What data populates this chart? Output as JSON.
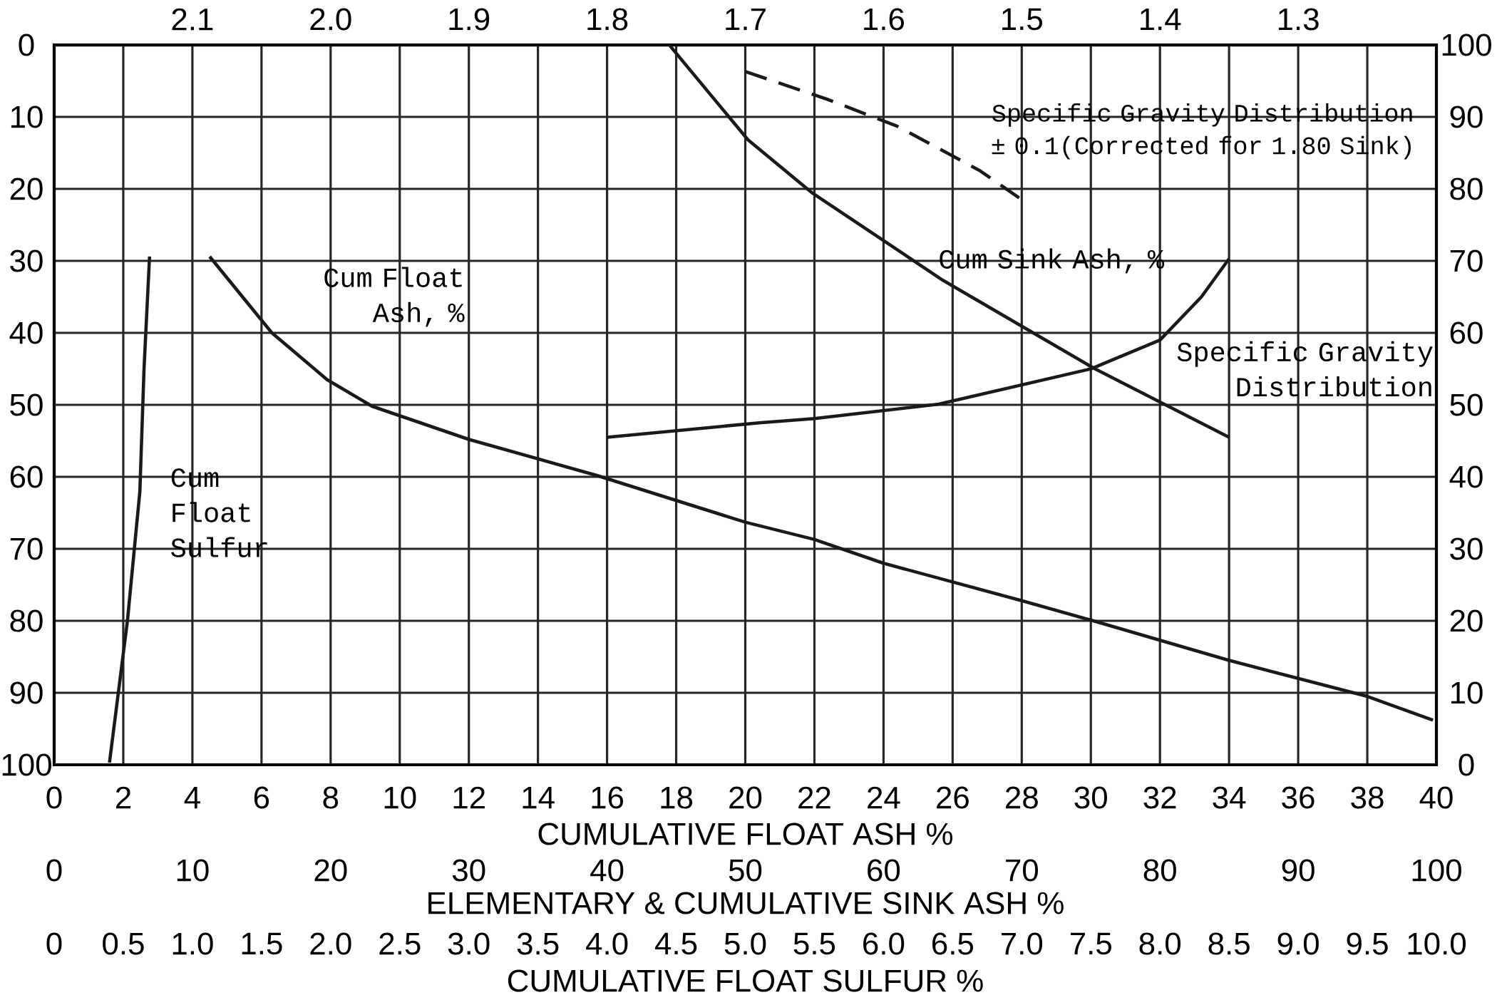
{
  "chart_data": [
    {
      "type": "line",
      "xlabel": "CUMULATIVE FLOAT ASH %",
      "xlim": [
        0,
        40
      ],
      "xticks": [
        0,
        2,
        4,
        6,
        8,
        10,
        12,
        14,
        16,
        18,
        20,
        22,
        24,
        26,
        28,
        30,
        32,
        34,
        36,
        38,
        40
      ],
      "x2lim": [
        2.2,
        1.2
      ],
      "x2ticks": [
        2.1,
        {
          "value": 2.0,
          "label": "2.0"
        },
        1.9,
        1.8,
        1.7,
        1.6,
        1.5,
        1.4,
        1.3
      ],
      "ylim": [
        100,
        0
      ],
      "yticks": [
        0,
        10,
        20,
        30,
        40,
        50,
        60,
        70,
        80,
        90,
        100
      ],
      "y2lim": [
        0,
        100
      ],
      "y2ticks": [
        0,
        10,
        20,
        30,
        40,
        50,
        60,
        70,
        80,
        90,
        100
      ],
      "grid": true,
      "marker": "none",
      "line_style": "solid",
      "series": [
        {
          "name": "Cum Float Ash, %",
          "color": "#1a1a1a",
          "x": [
            4.5,
            6.3,
            7.9,
            9.2,
            12,
            15.7,
            20,
            22,
            24,
            28,
            30,
            34,
            38,
            39.9
          ],
          "values": [
            29.4,
            40,
            46.5,
            50.2,
            54.8,
            59.8,
            66.3,
            68.7,
            72,
            77.2,
            79.9,
            85.5,
            90.5,
            93.8
          ]
        },
        {
          "name": "Specific Gravity Distribution",
          "color": "#1a1a1a",
          "axis": "x2",
          "x": [
            1.8,
            1.69,
            1.65,
            1.56,
            1.45,
            1.4,
            1.37,
            1.35
          ],
          "values": [
            54.5,
            52.5,
            51.9,
            49.9,
            45,
            41,
            35,
            29.7
          ]
        },
        {
          "name": "Specific Gravity Distribution ± 0.1(Corrected for 1.80 Sink)",
          "color": "#1a1a1a",
          "axis": "x2",
          "line_style": "dashed",
          "x": [
            1.7,
            1.68,
            1.64,
            1.59,
            1.53,
            1.5
          ],
          "values": [
            3.7,
            5,
            7.6,
            11.3,
            17.5,
            21.5
          ]
        }
      ]
    },
    {
      "type": "line",
      "xlabel": "ELEMENTARY & CUMULATIVE SINK ASH %",
      "xlim": [
        0,
        100
      ],
      "xticks": [
        0,
        10,
        20,
        30,
        40,
        50,
        60,
        70,
        80,
        90,
        100
      ],
      "ylim": [
        100,
        0
      ],
      "tick_labels": "x",
      "marker": "none",
      "series": [
        {
          "name": "Cum Sink Ash, %",
          "color": "#1a1a1a",
          "x": [
            44.5,
            50.2,
            54.8,
            64.3,
            75.3,
            85
          ],
          "values": [
            0,
            13.2,
            20.5,
            32.7,
            45,
            54.5
          ]
        }
      ]
    },
    {
      "type": "line",
      "xlabel": "CUMULATIVE FLOAT SULFUR %",
      "xlim": [
        0,
        10
      ],
      "xticks": [
        0,
        0.5,
        {
          "value": 1,
          "label": "1.0"
        },
        1.5,
        {
          "value": 2,
          "label": "2.0"
        },
        2.5,
        {
          "value": 3,
          "label": "3.0"
        },
        3.5,
        {
          "value": 4,
          "label": "4.0"
        },
        4.5,
        {
          "value": 5,
          "label": "5.0"
        },
        5.5,
        {
          "value": 6,
          "label": "6.0"
        },
        6.5,
        {
          "value": 7,
          "label": "7.0"
        },
        7.5,
        {
          "value": 8,
          "label": "8.0"
        },
        8.5,
        {
          "value": 9,
          "label": "9.0"
        },
        9.5,
        {
          "value": 10,
          "label": "10.0"
        }
      ],
      "ylim": [
        100,
        0
      ],
      "tick_labels": "x",
      "marker": "none",
      "series": [
        {
          "name": "Cum Float Sulfur",
          "color": "#1a1a1a",
          "x": [
            0.69,
            0.65,
            0.62,
            0.53,
            0.4
          ],
          "values": [
            29.4,
            45,
            62,
            80,
            99.7
          ]
        }
      ]
    }
  ]
}
